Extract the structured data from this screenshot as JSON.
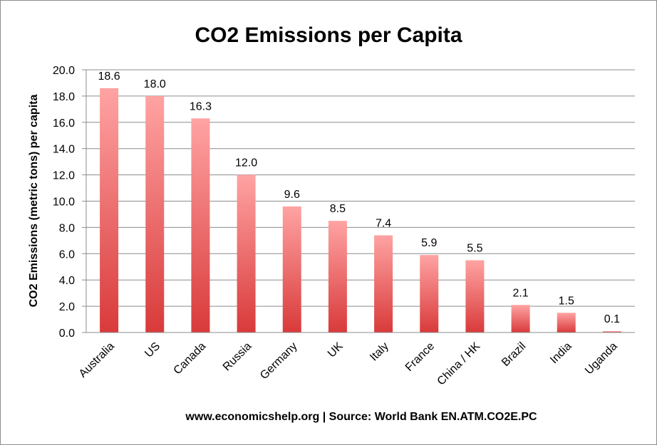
{
  "chart_data": {
    "type": "bar",
    "title": "CO2 Emissions per Capita",
    "ylabel": "CO2 Emissions (metric tons) per capita",
    "xlabel": "",
    "source": "www.economicshelp.org | Source: World Bank EN.ATM.CO2E.PC",
    "categories": [
      "Australia",
      "US",
      "Canada",
      "Russia",
      "Germany",
      "UK",
      "Italy",
      "France",
      "China / HK",
      "Brazil",
      "India",
      "Uganda"
    ],
    "values": [
      18.6,
      18.0,
      16.3,
      12.0,
      9.6,
      8.5,
      7.4,
      5.9,
      5.5,
      2.1,
      1.5,
      0.1
    ],
    "data_labels": [
      "18.6",
      "18.0",
      "16.3",
      "12.0",
      "9.6",
      "8.5",
      "7.4",
      "5.9",
      "5.5",
      "2.1",
      "1.5",
      "0.1"
    ],
    "yticks": [
      "0.0",
      "2.0",
      "4.0",
      "6.0",
      "8.0",
      "10.0",
      "12.0",
      "14.0",
      "16.0",
      "18.0",
      "20.0"
    ],
    "ylim": [
      0,
      20
    ],
    "grid": true,
    "legend": "none",
    "colors": {
      "bar_top": "#ffa3a3",
      "bar_bottom": "#d93a3a",
      "grid": "#8c8c8c",
      "axis": "#8c8c8c"
    }
  }
}
